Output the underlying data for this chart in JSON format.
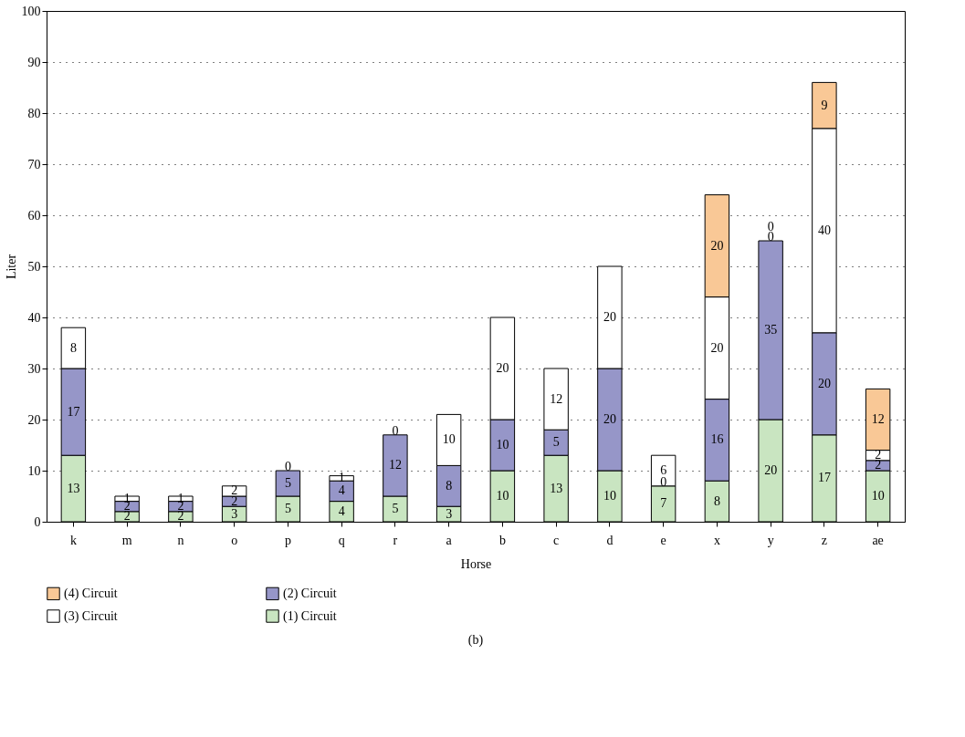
{
  "chart_data": {
    "type": "bar",
    "stacked": true,
    "xlabel": "Horse",
    "ylabel": "Liter",
    "categories": [
      "k",
      "m",
      "n",
      "o",
      "p",
      "q",
      "r",
      "a",
      "b",
      "c",
      "d",
      "e",
      "x",
      "y",
      "z",
      "ae"
    ],
    "series": [
      {
        "name": "(1) Circuit",
        "color": "#c9e5c1",
        "values": [
          13,
          2,
          2,
          3,
          5,
          4,
          5,
          3,
          10,
          13,
          10,
          7,
          8,
          20,
          17,
          10
        ]
      },
      {
        "name": "(2) Circuit",
        "color": "#9696c8",
        "values": [
          17,
          2,
          2,
          2,
          5,
          4,
          12,
          8,
          10,
          5,
          20,
          0,
          16,
          35,
          20,
          2
        ]
      },
      {
        "name": "(3) Circuit",
        "color": "#ffffff",
        "values": [
          8,
          1,
          1,
          2,
          0,
          1,
          0,
          10,
          20,
          12,
          20,
          6,
          20,
          0,
          40,
          2
        ]
      },
      {
        "name": "(4) Circuit",
        "color": "#f9c896",
        "values": [
          null,
          null,
          null,
          null,
          null,
          null,
          null,
          null,
          null,
          null,
          null,
          null,
          20,
          0,
          9,
          12
        ]
      }
    ],
    "ylim": [
      0,
      100
    ],
    "yticks": [
      0,
      10,
      20,
      30,
      40,
      50,
      60,
      70,
      80,
      90,
      100
    ],
    "grid": "y",
    "legend": "bottom",
    "data_labels": true,
    "annotations": [
      "(b)"
    ]
  }
}
